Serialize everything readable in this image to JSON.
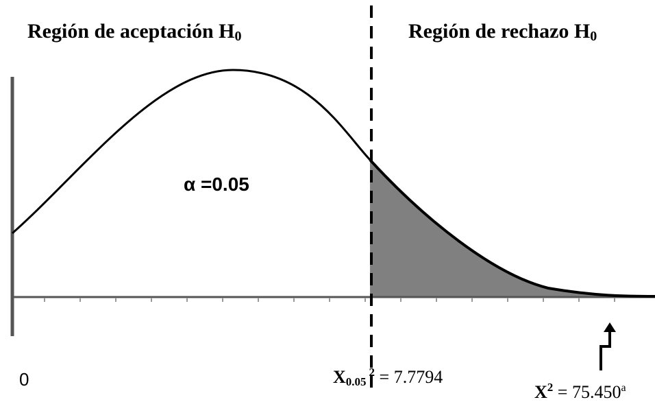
{
  "left_title": {
    "text": "Región de aceptación H",
    "sub": "0"
  },
  "right_title": {
    "text": "Región de rechazo H",
    "sub": "0"
  },
  "alpha_label": "α =0.05",
  "origin_label": "0",
  "critical_label": {
    "symbol": "X",
    "sub": "0.05",
    "sup": "2",
    "text": " = 7.7794"
  },
  "statistic_label": {
    "symbol": "X",
    "sup": "2",
    "text": " = 75.450",
    "note": "a"
  }
}
